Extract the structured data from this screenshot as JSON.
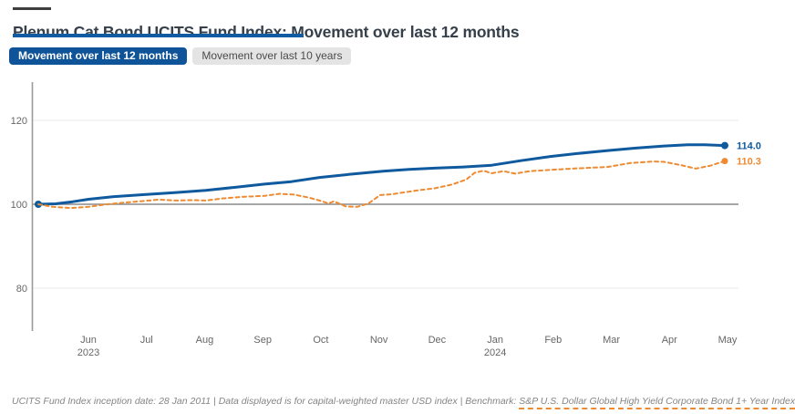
{
  "header": {
    "title": "Plenum Cat Bond UCITS Fund Index: Movement over last 12 months"
  },
  "tabs": [
    {
      "label": "Movement over last 12 months",
      "active": true
    },
    {
      "label": "Movement over last 10 years",
      "active": false
    }
  ],
  "colors": {
    "fund_blue": "#0f5a9e",
    "benchmark_orange": "#ed8b33",
    "tab_active_bg": "#0f5499",
    "title_rule": "#0f5ca3",
    "gridline": "#e8e8e8",
    "baseline": "#8a8a8a",
    "axis": "#9a9a9a",
    "tick_text": "#666666"
  },
  "chart_data": {
    "type": "line",
    "title": "Plenum Cat Bond UCITS Fund Index: Movement over last 12 months",
    "xlabel": "",
    "ylabel": "",
    "ylim": [
      70,
      129
    ],
    "yticks": [
      80,
      100,
      120
    ],
    "baseline_value": 100,
    "grid": "horizontal",
    "legend_position": "none",
    "xticks": [
      {
        "label": "Jun",
        "sub": "2023"
      },
      {
        "label": "Jul"
      },
      {
        "label": "Aug"
      },
      {
        "label": "Sep"
      },
      {
        "label": "Oct"
      },
      {
        "label": "Nov"
      },
      {
        "label": "Dec"
      },
      {
        "label": "Jan",
        "sub": "2024"
      },
      {
        "label": "Feb"
      },
      {
        "label": "Mar"
      },
      {
        "label": "Apr"
      },
      {
        "label": "May"
      }
    ],
    "series": [
      {
        "name": "Plenum Cat Bond UCITS Fund Index",
        "style": "solid",
        "color": "#0f5a9e",
        "end_label": "114.0",
        "start_dot": true,
        "points": [
          [
            0,
            100.0
          ],
          [
            0.025,
            100.1
          ],
          [
            0.05,
            100.6
          ],
          [
            0.073,
            101.2
          ],
          [
            0.108,
            101.8
          ],
          [
            0.154,
            102.3
          ],
          [
            0.2,
            102.8
          ],
          [
            0.243,
            103.3
          ],
          [
            0.283,
            104.0
          ],
          [
            0.328,
            104.8
          ],
          [
            0.367,
            105.4
          ],
          [
            0.408,
            106.4
          ],
          [
            0.45,
            107.1
          ],
          [
            0.5,
            107.9
          ],
          [
            0.538,
            108.3
          ],
          [
            0.575,
            108.6
          ],
          [
            0.617,
            108.9
          ],
          [
            0.658,
            109.3
          ],
          [
            0.7,
            110.4
          ],
          [
            0.743,
            111.4
          ],
          [
            0.783,
            112.1
          ],
          [
            0.826,
            112.8
          ],
          [
            0.867,
            113.4
          ],
          [
            0.908,
            113.9
          ],
          [
            0.942,
            114.2
          ],
          [
            0.967,
            114.2
          ],
          [
            0.996,
            114.0
          ]
        ]
      },
      {
        "name": "S&P U.S. Dollar Global High Yield Corporate Bond 1+ Year Index",
        "style": "dashed",
        "color": "#ed8b33",
        "end_label": "110.3",
        "start_dot": false,
        "points": [
          [
            0,
            100.0
          ],
          [
            0.021,
            99.4
          ],
          [
            0.046,
            99.1
          ],
          [
            0.073,
            99.4
          ],
          [
            0.1,
            100.0
          ],
          [
            0.125,
            100.4
          ],
          [
            0.154,
            100.8
          ],
          [
            0.175,
            101.1
          ],
          [
            0.2,
            100.9
          ],
          [
            0.225,
            101.0
          ],
          [
            0.243,
            100.9
          ],
          [
            0.267,
            101.4
          ],
          [
            0.3,
            101.8
          ],
          [
            0.328,
            102.0
          ],
          [
            0.35,
            102.5
          ],
          [
            0.371,
            102.3
          ],
          [
            0.392,
            101.6
          ],
          [
            0.408,
            100.9
          ],
          [
            0.421,
            100.2
          ],
          [
            0.429,
            100.7
          ],
          [
            0.446,
            99.5
          ],
          [
            0.463,
            99.4
          ],
          [
            0.479,
            100.2
          ],
          [
            0.496,
            102.2
          ],
          [
            0.513,
            102.4
          ],
          [
            0.533,
            102.9
          ],
          [
            0.554,
            103.4
          ],
          [
            0.575,
            103.8
          ],
          [
            0.6,
            104.7
          ],
          [
            0.621,
            105.9
          ],
          [
            0.633,
            107.5
          ],
          [
            0.646,
            108.0
          ],
          [
            0.658,
            107.4
          ],
          [
            0.675,
            107.9
          ],
          [
            0.692,
            107.3
          ],
          [
            0.713,
            107.9
          ],
          [
            0.743,
            108.2
          ],
          [
            0.775,
            108.5
          ],
          [
            0.8,
            108.7
          ],
          [
            0.826,
            108.9
          ],
          [
            0.858,
            109.8
          ],
          [
            0.892,
            110.2
          ],
          [
            0.908,
            110.1
          ],
          [
            0.933,
            109.3
          ],
          [
            0.954,
            108.5
          ],
          [
            0.975,
            109.2
          ],
          [
            0.996,
            110.3
          ]
        ]
      }
    ]
  },
  "footer": {
    "segment1": "UCITS Fund Index inception date: 28 Jan 2011",
    "separator": " | ",
    "segment2": "Data displayed is for capital-weighted master USD index",
    "segment3_prefix": "Benchmark: ",
    "benchmark_link": "S&P U.S. Dollar Global High Yield Corporate Bond 1+ Year Index"
  }
}
